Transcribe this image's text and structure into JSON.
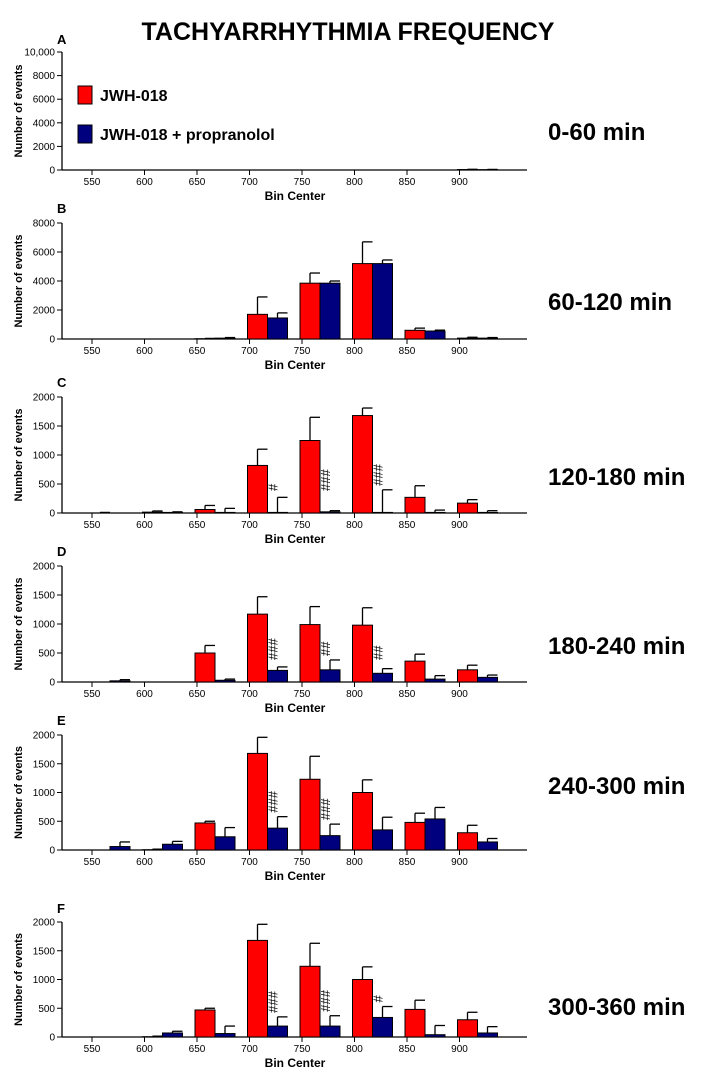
{
  "title": "TACHYARRHYTHMIA FREQUENCY",
  "legend": [
    {
      "name": "JWH-018",
      "color": "#ff0000"
    },
    {
      "name": "JWH-018 + propranolol",
      "color": "#00007f"
    }
  ],
  "colors": {
    "series_a": "#ff0000",
    "series_b": "#00007f",
    "outline": "#000000"
  },
  "chart_data": [
    {
      "type": "bar",
      "letter": "A",
      "period": "0-60 min",
      "xlabel": "Bin Center",
      "ylabel": "Number of events",
      "ylim": [
        0,
        10000
      ],
      "yticks": [
        0,
        2000,
        4000,
        6000,
        8000,
        10000
      ],
      "ytick_labels": [
        "0",
        "2000",
        "4000",
        "6000",
        "8000",
        "10,000"
      ],
      "categories": [
        "550",
        "600",
        "650",
        "700",
        "750",
        "800",
        "850",
        "900"
      ],
      "series": [
        {
          "name": "JWH-018",
          "values": [
            0,
            0,
            0,
            0,
            0,
            0,
            0,
            40
          ],
          "errors": [
            0,
            0,
            0,
            0,
            0,
            0,
            0,
            20
          ]
        },
        {
          "name": "JWH-018 + propranolol",
          "values": [
            0,
            0,
            0,
            0,
            0,
            0,
            0,
            30
          ],
          "errors": [
            0,
            0,
            0,
            0,
            0,
            0,
            0,
            20
          ]
        }
      ],
      "annotations": [
        "",
        "",
        "",
        "",
        "",
        "",
        "",
        ""
      ]
    },
    {
      "type": "bar",
      "letter": "B",
      "period": "60-120 min",
      "xlabel": "Bin Center",
      "ylabel": "Number of events",
      "ylim": [
        0,
        8000
      ],
      "yticks": [
        0,
        2000,
        4000,
        6000,
        8000
      ],
      "ytick_labels": [
        "0",
        "2000",
        "4000",
        "6000",
        "8000"
      ],
      "categories": [
        "550",
        "600",
        "650",
        "700",
        "750",
        "800",
        "850",
        "900"
      ],
      "series": [
        {
          "name": "JWH-018",
          "values": [
            0,
            0,
            20,
            1700,
            3850,
            5200,
            600,
            60
          ],
          "errors": [
            0,
            0,
            20,
            1200,
            700,
            1500,
            150,
            60
          ]
        },
        {
          "name": "JWH-018 + propranolol",
          "values": [
            0,
            0,
            60,
            1450,
            3850,
            5200,
            550,
            60
          ],
          "errors": [
            0,
            0,
            40,
            350,
            150,
            250,
            60,
            40
          ]
        }
      ],
      "annotations": [
        "",
        "",
        "",
        "",
        "",
        "",
        "",
        ""
      ]
    },
    {
      "type": "bar",
      "letter": "C",
      "period": "120-180 min",
      "xlabel": "Bin Center",
      "ylabel": "Number of events",
      "ylim": [
        0,
        2000
      ],
      "yticks": [
        0,
        500,
        1000,
        1500,
        2000
      ],
      "ytick_labels": [
        "0",
        "500",
        "1000",
        "1500",
        "2000"
      ],
      "categories": [
        "550",
        "600",
        "650",
        "700",
        "750",
        "800",
        "850",
        "900"
      ],
      "series": [
        {
          "name": "JWH-018",
          "values": [
            0,
            15,
            60,
            820,
            1250,
            1680,
            270,
            170
          ],
          "errors": [
            10,
            20,
            70,
            280,
            400,
            130,
            200,
            60
          ]
        },
        {
          "name": "JWH-018 + propranolol",
          "values": [
            0,
            10,
            10,
            10,
            20,
            10,
            10,
            10
          ],
          "errors": [
            0,
            10,
            70,
            260,
            20,
            390,
            40,
            30
          ]
        }
      ],
      "annotations": [
        "",
        "",
        "",
        "#",
        "###",
        "###",
        "",
        ""
      ]
    },
    {
      "type": "bar",
      "letter": "D",
      "period": "180-240 min",
      "xlabel": "Bin Center",
      "ylabel": "Number of events",
      "ylim": [
        0,
        2000
      ],
      "yticks": [
        0,
        500,
        1000,
        1500,
        2000
      ],
      "ytick_labels": [
        "0",
        "500",
        "1000",
        "1500",
        "2000"
      ],
      "categories": [
        "550",
        "600",
        "650",
        "700",
        "750",
        "800",
        "850",
        "900"
      ],
      "series": [
        {
          "name": "JWH-018",
          "values": [
            0,
            0,
            500,
            1170,
            990,
            980,
            360,
            210
          ],
          "errors": [
            0,
            0,
            130,
            300,
            310,
            300,
            120,
            80
          ]
        },
        {
          "name": "JWH-018 + propranolol",
          "values": [
            20,
            0,
            30,
            200,
            210,
            150,
            50,
            80
          ],
          "errors": [
            20,
            0,
            20,
            60,
            170,
            80,
            60,
            40
          ]
        }
      ],
      "annotations": [
        "",
        "",
        "",
        "###",
        "##",
        "##",
        "",
        ""
      ]
    },
    {
      "type": "bar",
      "letter": "E",
      "period": "240-300 min",
      "xlabel": "Bin Center",
      "ylabel": "Number of events",
      "ylim": [
        0,
        2000
      ],
      "yticks": [
        0,
        500,
        1000,
        1500,
        2000
      ],
      "ytick_labels": [
        "0",
        "500",
        "1000",
        "1500",
        "2000"
      ],
      "categories": [
        "550",
        "600",
        "650",
        "700",
        "750",
        "800",
        "850",
        "900"
      ],
      "series": [
        {
          "name": "JWH-018",
          "values": [
            0,
            5,
            470,
            1680,
            1230,
            1000,
            480,
            300
          ],
          "errors": [
            0,
            10,
            30,
            280,
            400,
            220,
            160,
            130
          ]
        },
        {
          "name": "JWH-018 + propranolol",
          "values": [
            60,
            100,
            230,
            380,
            250,
            350,
            540,
            140
          ],
          "errors": [
            80,
            50,
            160,
            200,
            200,
            220,
            200,
            60
          ]
        }
      ],
      "annotations": [
        "",
        "",
        "",
        "###",
        "###",
        "",
        "",
        ""
      ]
    },
    {
      "type": "bar",
      "letter": "F",
      "period": "300-360 min",
      "xlabel": "Bin Center",
      "ylabel": "Number of events",
      "ylim": [
        0,
        2000
      ],
      "yticks": [
        0,
        500,
        1000,
        1500,
        2000
      ],
      "ytick_labels": [
        "0",
        "500",
        "1000",
        "1500",
        "2000"
      ],
      "categories": [
        "550",
        "600",
        "650",
        "700",
        "750",
        "800",
        "850",
        "900"
      ],
      "series": [
        {
          "name": "JWH-018",
          "values": [
            0,
            5,
            470,
            1680,
            1230,
            1000,
            480,
            300
          ],
          "errors": [
            0,
            10,
            30,
            280,
            400,
            220,
            160,
            130
          ]
        },
        {
          "name": "JWH-018 + propranolol",
          "values": [
            0,
            70,
            60,
            190,
            190,
            340,
            40,
            70
          ],
          "errors": [
            0,
            30,
            130,
            160,
            180,
            190,
            160,
            110
          ]
        }
      ],
      "annotations": [
        "",
        "",
        "",
        "###",
        "###",
        "#",
        "",
        ""
      ]
    }
  ]
}
